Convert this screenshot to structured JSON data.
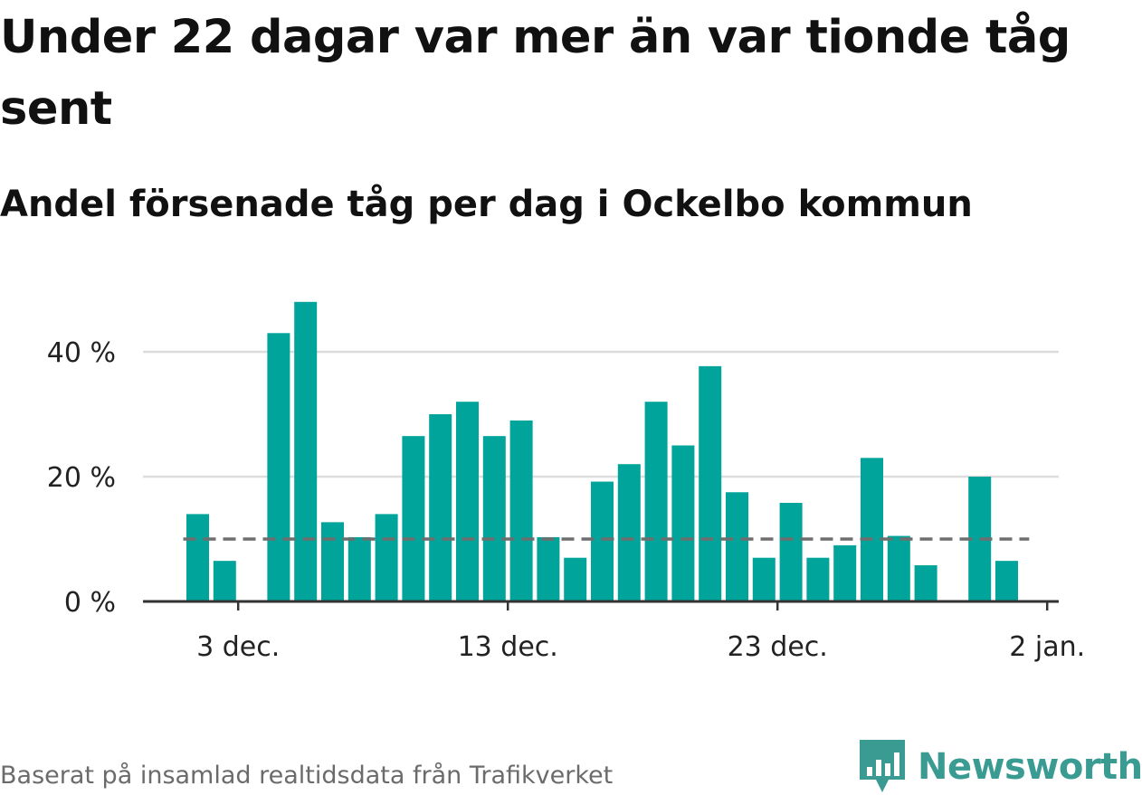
{
  "title": "Under 22 dagar var mer än var tionde tåg sent",
  "subtitle": "Andel försenade tåg per dag i Ockelbo kommun",
  "source": "Baserat på insamlad realtidsdata från Trafikverket",
  "brand": {
    "name": "Newsworthy",
    "color": "#3a9b93",
    "icon": "bar-chart-speech-bubble-icon"
  },
  "colors": {
    "bar": "#00a49a",
    "reference_line": "#6e6e6e",
    "grid": "#dddddd",
    "axis": "#333333"
  },
  "chart_data": {
    "type": "bar",
    "xlabel": "",
    "ylabel": "",
    "ylim": [
      0,
      48
    ],
    "y_ticks": [
      0,
      20,
      40
    ],
    "y_tick_labels": [
      "0 %",
      "20 %",
      "40 %"
    ],
    "x_ticks": [
      "2023-12-03",
      "2023-12-13",
      "2023-12-23",
      "2024-01-02"
    ],
    "x_tick_labels": [
      "3 dec.",
      "13 dec.",
      "23 dec.",
      "2 jan."
    ],
    "grid": "horizontal",
    "reference_line": {
      "value": 10,
      "style": "dashed"
    },
    "categories": [
      "2023-12-01",
      "2023-12-02",
      "2023-12-03",
      "2023-12-04",
      "2023-12-05",
      "2023-12-06",
      "2023-12-07",
      "2023-12-08",
      "2023-12-09",
      "2023-12-10",
      "2023-12-11",
      "2023-12-12",
      "2023-12-13",
      "2023-12-14",
      "2023-12-15",
      "2023-12-16",
      "2023-12-17",
      "2023-12-18",
      "2023-12-19",
      "2023-12-20",
      "2023-12-21",
      "2023-12-22",
      "2023-12-23",
      "2023-12-24",
      "2023-12-25",
      "2023-12-26",
      "2023-12-27",
      "2023-12-28",
      "2023-12-29",
      "2023-12-30",
      "2023-12-31",
      "2024-01-01"
    ],
    "values": [
      14,
      6.5,
      0,
      43,
      48,
      12.7,
      10.3,
      14,
      26.5,
      30,
      32,
      26.5,
      29,
      10.3,
      7,
      19.2,
      22,
      32,
      25,
      37.7,
      17.5,
      7,
      15.8,
      7,
      9,
      23,
      10.5,
      5.8,
      0,
      20,
      6.5,
      0
    ]
  }
}
